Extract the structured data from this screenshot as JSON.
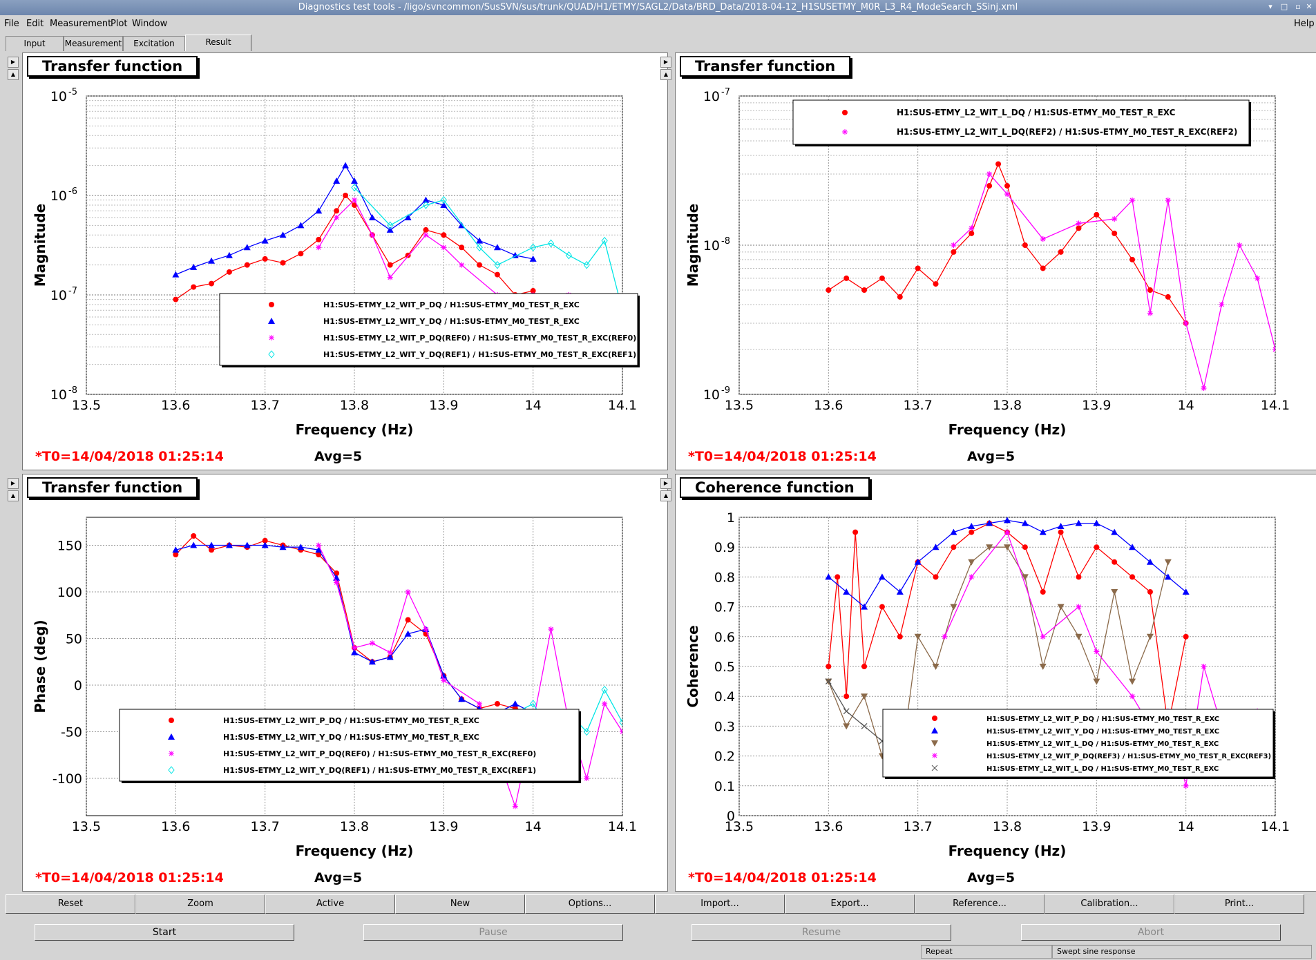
{
  "window": {
    "title": "Diagnostics test tools - /ligo/svncommon/SusSVN/sus/trunk/QUAD/H1/ETMY/SAGL2/Data/BRD_Data/2018-04-12_H1SUSETMY_M0R_L3_R4_ModeSearch_SSinj.xml"
  },
  "menu": {
    "file": "File",
    "edit": "Edit",
    "measurement": "Measurement",
    "plot": "Plot",
    "window": "Window",
    "help": "Help"
  },
  "tabs": [
    "Input",
    "Measurement",
    "Excitation",
    "Result"
  ],
  "panels": [
    {
      "title": "Transfer function",
      "t0": "*T0=14/04/2018 01:25:14",
      "avg": "Avg=5",
      "ylabel": "Magnitude",
      "xlabel": "Frequency (Hz)",
      "yticks": [
        "10",
        "10",
        "10",
        "10"
      ],
      "yexp": [
        "-5",
        "-6",
        "-7",
        "-8"
      ],
      "legend": [
        "H1:SUS-ETMY_L2_WIT_P_DQ / H1:SUS-ETMY_M0_TEST_R_EXC",
        "H1:SUS-ETMY_L2_WIT_Y_DQ / H1:SUS-ETMY_M0_TEST_R_EXC",
        "H1:SUS-ETMY_L2_WIT_P_DQ(REF0) / H1:SUS-ETMY_M0_TEST_R_EXC(REF0)",
        "H1:SUS-ETMY_L2_WIT_Y_DQ(REF1) / H1:SUS-ETMY_M0_TEST_R_EXC(REF1)"
      ]
    },
    {
      "title": "Transfer function",
      "t0": "*T0=14/04/2018 01:25:14",
      "avg": "Avg=5",
      "ylabel": "Magnitude",
      "xlabel": "Frequency (Hz)",
      "yticks": [
        "10",
        "10",
        "10"
      ],
      "yexp": [
        "-7",
        "-8",
        "-9"
      ],
      "legend": [
        "H1:SUS-ETMY_L2_WIT_L_DQ / H1:SUS-ETMY_M0_TEST_R_EXC",
        "H1:SUS-ETMY_L2_WIT_L_DQ(REF2) / H1:SUS-ETMY_M0_TEST_R_EXC(REF2)"
      ]
    },
    {
      "title": "Transfer function",
      "t0": "*T0=14/04/2018 01:25:14",
      "avg": "Avg=5",
      "ylabel": "Phase (deg)",
      "xlabel": "Frequency (Hz)",
      "yticks": [
        "150",
        "100",
        "50",
        "0",
        "-50",
        "-100"
      ],
      "legend": [
        "H1:SUS-ETMY_L2_WIT_P_DQ / H1:SUS-ETMY_M0_TEST_R_EXC",
        "H1:SUS-ETMY_L2_WIT_Y_DQ / H1:SUS-ETMY_M0_TEST_R_EXC",
        "H1:SUS-ETMY_L2_WIT_P_DQ(REF0) / H1:SUS-ETMY_M0_TEST_R_EXC(REF0)",
        "H1:SUS-ETMY_L2_WIT_Y_DQ(REF1) / H1:SUS-ETMY_M0_TEST_R_EXC(REF1)"
      ]
    },
    {
      "title": "Coherence function",
      "t0": "*T0=14/04/2018 01:25:14",
      "avg": "Avg=5",
      "ylabel": "Coherence",
      "xlabel": "Frequency (Hz)",
      "yticks": [
        "1",
        "0.9",
        "0.8",
        "0.7",
        "0.6",
        "0.5",
        "0.4",
        "0.3",
        "0.2",
        "0.1",
        "0"
      ],
      "legend": [
        "H1:SUS-ETMY_L2_WIT_P_DQ / H1:SUS-ETMY_M0_TEST_R_EXC",
        "H1:SUS-ETMY_L2_WIT_Y_DQ / H1:SUS-ETMY_M0_TEST_R_EXC",
        "H1:SUS-ETMY_L2_WIT_L_DQ / H1:SUS-ETMY_M0_TEST_R_EXC",
        "H1:SUS-ETMY_L2_WIT_P_DQ(REF3) / H1:SUS-ETMY_M0_TEST_R_EXC(REF3)",
        "H1:SUS-ETMY_L2_WIT_L_DQ / H1:SUS-ETMY_M0_TEST_R_EXC"
      ]
    }
  ],
  "xticks": [
    "13.5",
    "13.6",
    "13.7",
    "13.8",
    "13.9",
    "14",
    "14.1"
  ],
  "toolbar": [
    "Reset",
    "Zoom",
    "Active",
    "New",
    "Options...",
    "Import...",
    "Export...",
    "Reference...",
    "Calibration...",
    "Print..."
  ],
  "controls": {
    "start": "Start",
    "pause": "Pause",
    "resume": "Resume",
    "abort": "Abort"
  },
  "statusbar": {
    "repeat": "Repeat",
    "mode": "Swept sine response"
  },
  "colors": {
    "red": "#ff0000",
    "blue": "#0000ff",
    "magenta": "#ff00ff",
    "cyan": "#00e5e5",
    "brown": "#8b6a4a",
    "gray": "#555555"
  },
  "chart_data": [
    {
      "type": "line",
      "xlim": [
        13.5,
        14.1
      ],
      "ylog": true,
      "ylim": [
        1e-08,
        1e-05
      ],
      "series": [
        {
          "name": "H1:SUS-ETMY_L2_WIT_P_DQ / H1:SUS-ETMY_M0_TEST_R_EXC",
          "color": "#ff0000",
          "marker": "circle",
          "x": [
            13.6,
            13.62,
            13.64,
            13.66,
            13.68,
            13.7,
            13.72,
            13.74,
            13.76,
            13.78,
            13.79,
            13.8,
            13.82,
            13.84,
            13.86,
            13.88,
            13.9,
            13.92,
            13.94,
            13.96,
            13.98,
            14.0
          ],
          "y": [
            9e-08,
            1.2e-07,
            1.3e-07,
            1.7e-07,
            2e-07,
            2.3e-07,
            2.1e-07,
            2.6e-07,
            3.6e-07,
            7e-07,
            1e-06,
            8e-07,
            4e-07,
            2e-07,
            2.5e-07,
            4.5e-07,
            4e-07,
            3e-07,
            2e-07,
            1.6e-07,
            1e-07,
            1.1e-07
          ]
        },
        {
          "name": "H1:SUS-ETMY_L2_WIT_Y_DQ / H1:SUS-ETMY_M0_TEST_R_EXC",
          "color": "#0000ff",
          "marker": "triangle",
          "x": [
            13.6,
            13.62,
            13.64,
            13.66,
            13.68,
            13.7,
            13.72,
            13.74,
            13.76,
            13.78,
            13.79,
            13.8,
            13.82,
            13.84,
            13.86,
            13.88,
            13.9,
            13.92,
            13.94,
            13.96,
            13.98,
            14.0
          ],
          "y": [
            1.6e-07,
            1.9e-07,
            2.2e-07,
            2.5e-07,
            3e-07,
            3.5e-07,
            4e-07,
            5e-07,
            7e-07,
            1.4e-06,
            2e-06,
            1.4e-06,
            6e-07,
            4.5e-07,
            6e-07,
            9e-07,
            8e-07,
            5e-07,
            3.5e-07,
            3e-07,
            2.5e-07,
            2.3e-07
          ]
        },
        {
          "name": "H1:SUS-ETMY_L2_WIT_P_DQ(REF0) / H1:SUS-ETMY_M0_TEST_R_EXC(REF0)",
          "color": "#ff00ff",
          "marker": "star",
          "x": [
            13.76,
            13.78,
            13.8,
            13.82,
            13.84,
            13.88,
            13.9,
            13.92,
            13.96,
            14.0,
            14.02,
            14.04,
            14.06,
            14.08,
            14.1
          ],
          "y": [
            3e-07,
            6e-07,
            9e-07,
            4e-07,
            1.5e-07,
            4e-07,
            3e-07,
            2e-07,
            1e-07,
            1e-07,
            8e-08,
            1e-07,
            6e-08,
            7e-08,
            6e-08
          ]
        },
        {
          "name": "H1:SUS-ETMY_L2_WIT_Y_DQ(REF1) / H1:SUS-ETMY_M0_TEST_R_EXC(REF1)",
          "color": "#00e5e5",
          "marker": "diamond",
          "x": [
            13.8,
            13.84,
            13.88,
            13.9,
            13.94,
            13.96,
            14.0,
            14.02,
            14.04,
            14.06,
            14.08,
            14.1
          ],
          "y": [
            1.2e-06,
            5e-07,
            8e-07,
            9e-07,
            3e-07,
            2e-07,
            3e-07,
            3.3e-07,
            2.5e-07,
            2e-07,
            3.5e-07,
            7e-08
          ]
        }
      ]
    },
    {
      "type": "line",
      "xlim": [
        13.5,
        14.1
      ],
      "ylog": true,
      "ylim": [
        1e-09,
        1e-07
      ],
      "series": [
        {
          "name": "H1:SUS-ETMY_L2_WIT_L_DQ / H1:SUS-ETMY_M0_TEST_R_EXC",
          "color": "#ff0000",
          "marker": "circle",
          "x": [
            13.6,
            13.62,
            13.64,
            13.66,
            13.68,
            13.7,
            13.72,
            13.74,
            13.76,
            13.78,
            13.79,
            13.8,
            13.82,
            13.84,
            13.86,
            13.88,
            13.9,
            13.92,
            13.94,
            13.96,
            13.98,
            14.0
          ],
          "y": [
            5e-09,
            6e-09,
            5e-09,
            6e-09,
            4.5e-09,
            7e-09,
            5.5e-09,
            9e-09,
            1.2e-08,
            2.5e-08,
            3.5e-08,
            2.5e-08,
            1e-08,
            7e-09,
            9e-09,
            1.3e-08,
            1.6e-08,
            1.2e-08,
            8e-09,
            5e-09,
            4.5e-09,
            3e-09
          ]
        },
        {
          "name": "H1:SUS-ETMY_L2_WIT_L_DQ(REF2) / H1:SUS-ETMY_M0_TEST_R_EXC(REF2)",
          "color": "#ff00ff",
          "marker": "star",
          "x": [
            13.74,
            13.76,
            13.78,
            13.8,
            13.84,
            13.88,
            13.92,
            13.94,
            13.96,
            13.98,
            14.0,
            14.02,
            14.04,
            14.06,
            14.08,
            14.1
          ],
          "y": [
            1e-08,
            1.3e-08,
            3e-08,
            2.2e-08,
            1.1e-08,
            1.4e-08,
            1.5e-08,
            2e-08,
            3.5e-09,
            2e-08,
            3e-09,
            1.1e-09,
            4e-09,
            1e-08,
            6e-09,
            2e-09
          ]
        }
      ]
    },
    {
      "type": "line",
      "xlim": [
        13.5,
        14.1
      ],
      "ylim": [
        -140,
        180
      ],
      "series": [
        {
          "name": "H1:SUS-ETMY_L2_WIT_P_DQ / H1:SUS-ETMY_M0_TEST_R_EXC",
          "color": "#ff0000",
          "marker": "circle",
          "x": [
            13.6,
            13.62,
            13.64,
            13.66,
            13.68,
            13.7,
            13.72,
            13.74,
            13.76,
            13.78,
            13.8,
            13.82,
            13.84,
            13.86,
            13.88,
            13.9,
            13.92,
            13.94,
            13.96,
            13.98,
            14.0
          ],
          "y": [
            140,
            160,
            145,
            150,
            148,
            155,
            150,
            145,
            140,
            120,
            40,
            25,
            30,
            70,
            55,
            10,
            -15,
            -25,
            -20,
            -25,
            -30
          ]
        },
        {
          "name": "H1:SUS-ETMY_L2_WIT_Y_DQ / H1:SUS-ETMY_M0_TEST_R_EXC",
          "color": "#0000ff",
          "marker": "triangle",
          "x": [
            13.6,
            13.62,
            13.64,
            13.66,
            13.68,
            13.7,
            13.72,
            13.74,
            13.76,
            13.78,
            13.8,
            13.82,
            13.84,
            13.86,
            13.88,
            13.9,
            13.92,
            13.94,
            13.96,
            13.98,
            14.0
          ],
          "y": [
            145,
            150,
            150,
            150,
            150,
            150,
            148,
            148,
            145,
            115,
            35,
            25,
            30,
            55,
            60,
            10,
            -15,
            -25,
            -30,
            -20,
            -30
          ]
        },
        {
          "name": "H1:SUS-ETMY_L2_WIT_P_DQ(REF0) / H1:SUS-ETMY_M0_TEST_R_EXC(REF0)",
          "color": "#ff00ff",
          "marker": "star",
          "x": [
            13.76,
            13.78,
            13.8,
            13.82,
            13.84,
            13.86,
            13.88,
            13.9,
            13.94,
            13.98,
            14.0,
            14.02,
            14.04,
            14.06,
            14.08,
            14.1
          ],
          "y": [
            150,
            110,
            40,
            45,
            35,
            100,
            60,
            5,
            -20,
            -130,
            -40,
            60,
            -40,
            -100,
            -20,
            -50
          ]
        },
        {
          "name": "H1:SUS-ETMY_L2_WIT_Y_DQ(REF1) / H1:SUS-ETMY_M0_TEST_R_EXC(REF1)",
          "color": "#00e5e5",
          "marker": "diamond",
          "x": [
            13.98,
            14.0,
            14.02,
            14.04,
            14.06,
            14.08,
            14.1
          ],
          "y": [
            -30,
            -20,
            -50,
            -30,
            -50,
            -5,
            -40
          ]
        }
      ]
    },
    {
      "type": "line",
      "xlim": [
        13.5,
        14.1
      ],
      "ylim": [
        0,
        1
      ],
      "series": [
        {
          "name": "H1:SUS-ETMY_L2_WIT_P_DQ / H1:SUS-ETMY_M0_TEST_R_EXC",
          "color": "#ff0000",
          "marker": "circle",
          "x": [
            13.6,
            13.61,
            13.62,
            13.63,
            13.64,
            13.66,
            13.68,
            13.7,
            13.72,
            13.74,
            13.76,
            13.78,
            13.8,
            13.82,
            13.84,
            13.86,
            13.88,
            13.9,
            13.92,
            13.94,
            13.96,
            13.98,
            14.0
          ],
          "y": [
            0.5,
            0.8,
            0.4,
            0.95,
            0.5,
            0.7,
            0.6,
            0.85,
            0.8,
            0.9,
            0.95,
            0.98,
            0.95,
            0.9,
            0.75,
            0.95,
            0.8,
            0.9,
            0.85,
            0.8,
            0.75,
            0.3,
            0.6
          ]
        },
        {
          "name": "H1:SUS-ETMY_L2_WIT_Y_DQ / H1:SUS-ETMY_M0_TEST_R_EXC",
          "color": "#0000ff",
          "marker": "triangle",
          "x": [
            13.6,
            13.62,
            13.64,
            13.66,
            13.68,
            13.7,
            13.72,
            13.74,
            13.76,
            13.78,
            13.8,
            13.82,
            13.84,
            13.86,
            13.88,
            13.9,
            13.92,
            13.94,
            13.96,
            13.98,
            14.0
          ],
          "y": [
            0.8,
            0.75,
            0.7,
            0.8,
            0.75,
            0.85,
            0.9,
            0.95,
            0.97,
            0.98,
            0.99,
            0.98,
            0.95,
            0.97,
            0.98,
            0.98,
            0.95,
            0.9,
            0.85,
            0.8,
            0.75
          ]
        },
        {
          "name": "H1:SUS-ETMY_L2_WIT_L_DQ / H1:SUS-ETMY_M0_TEST_R_EXC",
          "color": "#8b6a4a",
          "marker": "triangle-down",
          "x": [
            13.6,
            13.62,
            13.64,
            13.66,
            13.68,
            13.7,
            13.72,
            13.74,
            13.76,
            13.78,
            13.8,
            13.82,
            13.84,
            13.86,
            13.88,
            13.9,
            13.92,
            13.94,
            13.96,
            13.98
          ],
          "y": [
            0.45,
            0.3,
            0.4,
            0.2,
            0.15,
            0.6,
            0.5,
            0.7,
            0.85,
            0.9,
            0.9,
            0.8,
            0.5,
            0.7,
            0.6,
            0.45,
            0.75,
            0.45,
            0.6,
            0.85
          ]
        },
        {
          "name": "H1:SUS-ETMY_L2_WIT_P_DQ(REF3) / H1:SUS-ETMY_M0_TEST_R_EXC(REF3)",
          "color": "#ff00ff",
          "marker": "star",
          "x": [
            13.73,
            13.76,
            13.8,
            13.84,
            13.88,
            13.9,
            13.94,
            13.96,
            13.98,
            14.0,
            14.02,
            14.04,
            14.06,
            14.08,
            14.1
          ],
          "y": [
            0.6,
            0.8,
            0.95,
            0.6,
            0.7,
            0.55,
            0.4,
            0.3,
            0.35,
            0.1,
            0.5,
            0.3,
            0.25,
            0.35,
            0.15
          ]
        },
        {
          "name": "H1:SUS-ETMY_L2_WIT_L_DQ / H1:SUS-ETMY_M0_TEST_R_EXC",
          "color": "#555555",
          "marker": "x",
          "x": [
            13.6,
            13.62,
            13.64,
            13.66
          ],
          "y": [
            0.45,
            0.35,
            0.3,
            0.25
          ]
        }
      ]
    }
  ]
}
